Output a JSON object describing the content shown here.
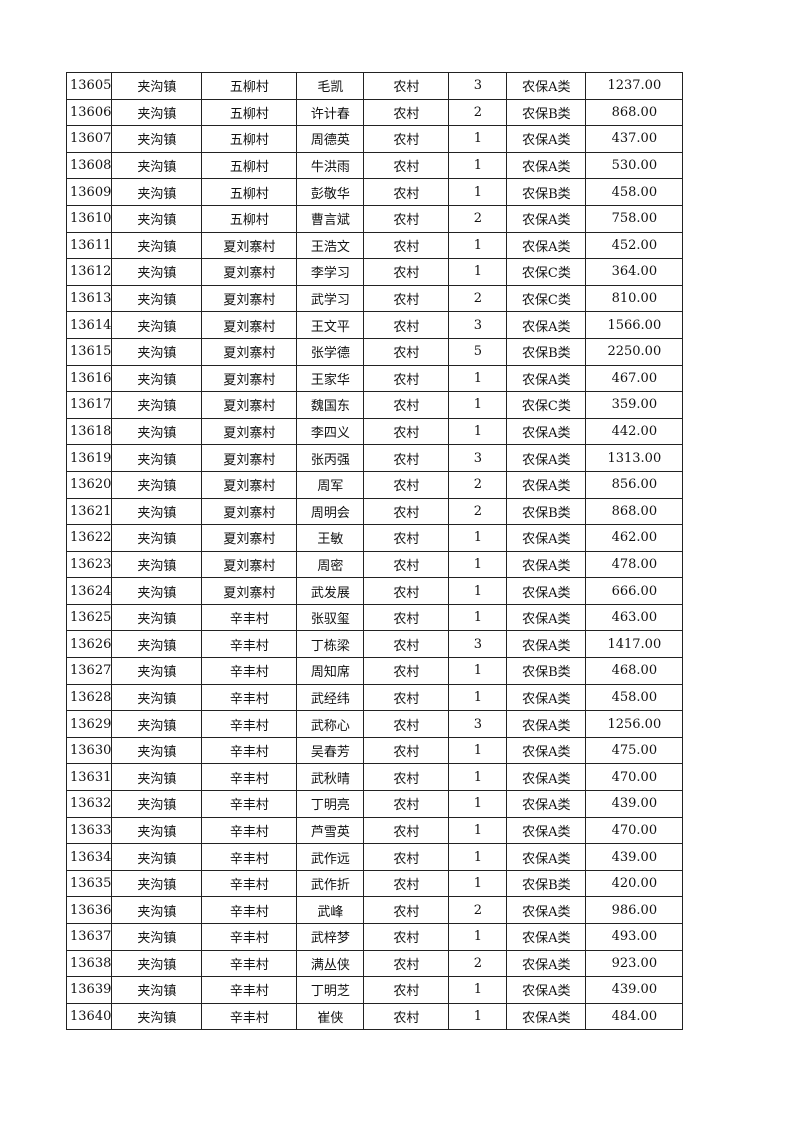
{
  "rows": [
    [
      "13605",
      "夹沟镇",
      "五柳村",
      "毛凯",
      "农村",
      "3",
      "农保A类",
      "1237.00"
    ],
    [
      "13606",
      "夹沟镇",
      "五柳村",
      "许计春",
      "农村",
      "2",
      "农保B类",
      "868.00"
    ],
    [
      "13607",
      "夹沟镇",
      "五柳村",
      "周德英",
      "农村",
      "1",
      "农保A类",
      "437.00"
    ],
    [
      "13608",
      "夹沟镇",
      "五柳村",
      "牛洪雨",
      "农村",
      "1",
      "农保A类",
      "530.00"
    ],
    [
      "13609",
      "夹沟镇",
      "五柳村",
      "彭敬华",
      "农村",
      "1",
      "农保B类",
      "458.00"
    ],
    [
      "13610",
      "夹沟镇",
      "五柳村",
      "曹言斌",
      "农村",
      "2",
      "农保A类",
      "758.00"
    ],
    [
      "13611",
      "夹沟镇",
      "夏刘寨村",
      "王浩文",
      "农村",
      "1",
      "农保A类",
      "452.00"
    ],
    [
      "13612",
      "夹沟镇",
      "夏刘寨村",
      "李学习",
      "农村",
      "1",
      "农保C类",
      "364.00"
    ],
    [
      "13613",
      "夹沟镇",
      "夏刘寨村",
      "武学习",
      "农村",
      "2",
      "农保C类",
      "810.00"
    ],
    [
      "13614",
      "夹沟镇",
      "夏刘寨村",
      "王文平",
      "农村",
      "3",
      "农保A类",
      "1566.00"
    ],
    [
      "13615",
      "夹沟镇",
      "夏刘寨村",
      "张学德",
      "农村",
      "5",
      "农保B类",
      "2250.00"
    ],
    [
      "13616",
      "夹沟镇",
      "夏刘寨村",
      "王家华",
      "农村",
      "1",
      "农保A类",
      "467.00"
    ],
    [
      "13617",
      "夹沟镇",
      "夏刘寨村",
      "魏国东",
      "农村",
      "1",
      "农保C类",
      "359.00"
    ],
    [
      "13618",
      "夹沟镇",
      "夏刘寨村",
      "李四义",
      "农村",
      "1",
      "农保A类",
      "442.00"
    ],
    [
      "13619",
      "夹沟镇",
      "夏刘寨村",
      "张丙强",
      "农村",
      "3",
      "农保A类",
      "1313.00"
    ],
    [
      "13620",
      "夹沟镇",
      "夏刘寨村",
      "周军",
      "农村",
      "2",
      "农保A类",
      "856.00"
    ],
    [
      "13621",
      "夹沟镇",
      "夏刘寨村",
      "周明会",
      "农村",
      "2",
      "农保B类",
      "868.00"
    ],
    [
      "13622",
      "夹沟镇",
      "夏刘寨村",
      "王敏",
      "农村",
      "1",
      "农保A类",
      "462.00"
    ],
    [
      "13623",
      "夹沟镇",
      "夏刘寨村",
      "周密",
      "农村",
      "1",
      "农保A类",
      "478.00"
    ],
    [
      "13624",
      "夹沟镇",
      "夏刘寨村",
      "武发展",
      "农村",
      "1",
      "农保A类",
      "666.00"
    ],
    [
      "13625",
      "夹沟镇",
      "辛丰村",
      "张驭玺",
      "农村",
      "1",
      "农保A类",
      "463.00"
    ],
    [
      "13626",
      "夹沟镇",
      "辛丰村",
      "丁栋梁",
      "农村",
      "3",
      "农保A类",
      "1417.00"
    ],
    [
      "13627",
      "夹沟镇",
      "辛丰村",
      "周知席",
      "农村",
      "1",
      "农保B类",
      "468.00"
    ],
    [
      "13628",
      "夹沟镇",
      "辛丰村",
      "武经纬",
      "农村",
      "1",
      "农保A类",
      "458.00"
    ],
    [
      "13629",
      "夹沟镇",
      "辛丰村",
      "武称心",
      "农村",
      "3",
      "农保A类",
      "1256.00"
    ],
    [
      "13630",
      "夹沟镇",
      "辛丰村",
      "吴春芳",
      "农村",
      "1",
      "农保A类",
      "475.00"
    ],
    [
      "13631",
      "夹沟镇",
      "辛丰村",
      "武秋晴",
      "农村",
      "1",
      "农保A类",
      "470.00"
    ],
    [
      "13632",
      "夹沟镇",
      "辛丰村",
      "丁明亮",
      "农村",
      "1",
      "农保A类",
      "439.00"
    ],
    [
      "13633",
      "夹沟镇",
      "辛丰村",
      "芦雪英",
      "农村",
      "1",
      "农保A类",
      "470.00"
    ],
    [
      "13634",
      "夹沟镇",
      "辛丰村",
      "武作远",
      "农村",
      "1",
      "农保A类",
      "439.00"
    ],
    [
      "13635",
      "夹沟镇",
      "辛丰村",
      "武作折",
      "农村",
      "1",
      "农保B类",
      "420.00"
    ],
    [
      "13636",
      "夹沟镇",
      "辛丰村",
      "武峰",
      "农村",
      "2",
      "农保A类",
      "986.00"
    ],
    [
      "13637",
      "夹沟镇",
      "辛丰村",
      "武梓梦",
      "农村",
      "1",
      "农保A类",
      "493.00"
    ],
    [
      "13638",
      "夹沟镇",
      "辛丰村",
      "满丛侠",
      "农村",
      "2",
      "农保A类",
      "923.00"
    ],
    [
      "13639",
      "夹沟镇",
      "辛丰村",
      "丁明芝",
      "农村",
      "1",
      "农保A类",
      "439.00"
    ],
    [
      "13640",
      "夹沟镇",
      "辛丰村",
      "崔侠",
      "农村",
      "1",
      "农保A类",
      "484.00"
    ]
  ]
}
